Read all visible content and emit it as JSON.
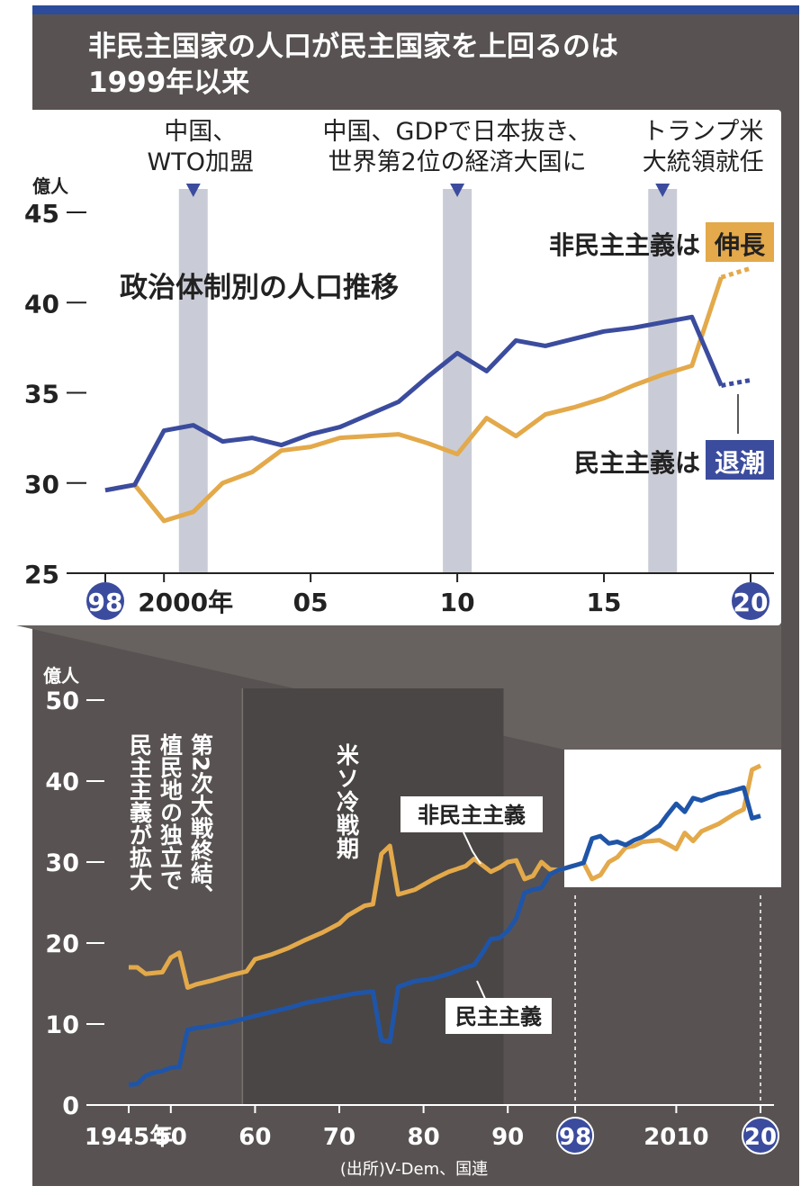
{
  "title_line1": "非民主国家の人口が民主国家を上回るのは",
  "title_line2": "1999年以来",
  "source": "(出所)V-Dem、国連",
  "colors": {
    "nondemocracy": "#e3a94a",
    "democracy": "#3b4c9e",
    "democracy_lower": "#1f55a8",
    "background": "#585352",
    "highlight_band": "#c9ccd6"
  },
  "chart_data": [
    {
      "type": "line",
      "title": "政治体制別の人口推移",
      "ylabel": "億人",
      "ylim": [
        25,
        45
      ],
      "yticks": [
        "25",
        "30",
        "35",
        "40",
        "45"
      ],
      "xlim": [
        1998,
        2020
      ],
      "xtick_labels": [
        {
          "x": 1998,
          "label": "98",
          "circled": true
        },
        {
          "x": 2000,
          "label": "2000年"
        },
        {
          "x": 2005,
          "label": "05"
        },
        {
          "x": 2010,
          "label": "10"
        },
        {
          "x": 2015,
          "label": "15"
        },
        {
          "x": 2020,
          "label": "20",
          "circled": true
        }
      ],
      "events": [
        {
          "x": 2001,
          "line1": "中国、",
          "line2": "WTO加盟"
        },
        {
          "x": 2010,
          "line1": "中国、GDPで日本抜き、",
          "line2": "世界第2位の経済大国に"
        },
        {
          "x": 2017,
          "line1": "トランプ米",
          "line2": "大統領就任"
        }
      ],
      "series": [
        {
          "name": "非民主主義",
          "label_prefix": "非民主主義は",
          "label_highlight": "伸長",
          "color": "#e3a94a",
          "x": [
            1998,
            1999,
            2000,
            2001,
            2002,
            2003,
            2004,
            2005,
            2006,
            2007,
            2008,
            2009,
            2010,
            2011,
            2012,
            2013,
            2014,
            2015,
            2016,
            2017,
            2018,
            2019
          ],
          "y": [
            29.6,
            29.9,
            27.9,
            28.4,
            30.0,
            30.6,
            31.8,
            32.0,
            32.5,
            32.6,
            32.7,
            32.2,
            31.6,
            33.6,
            32.6,
            33.8,
            34.2,
            34.7,
            35.4,
            36.0,
            36.5,
            41.4
          ],
          "projection": {
            "x": [
              2019,
              2020
            ],
            "y": [
              41.4,
              41.9
            ]
          }
        },
        {
          "name": "民主主義",
          "label_prefix": "民主主義は",
          "label_highlight": "退潮",
          "color": "#3b4c9e",
          "x": [
            1998,
            1999,
            2000,
            2001,
            2002,
            2003,
            2004,
            2005,
            2006,
            2007,
            2008,
            2009,
            2010,
            2011,
            2012,
            2013,
            2014,
            2015,
            2016,
            2017,
            2018,
            2019
          ],
          "y": [
            29.6,
            29.9,
            32.9,
            33.2,
            32.3,
            32.5,
            32.1,
            32.7,
            33.1,
            33.8,
            34.5,
            35.9,
            37.2,
            36.2,
            37.9,
            37.6,
            38.0,
            38.4,
            38.6,
            38.9,
            39.2,
            35.4
          ],
          "projection": {
            "x": [
              2019,
              2020
            ],
            "y": [
              35.4,
              35.7
            ]
          }
        }
      ]
    },
    {
      "type": "line",
      "ylabel": "億人",
      "ylim": [
        0,
        50
      ],
      "yticks": [
        "0",
        "10",
        "20",
        "30",
        "40",
        "50"
      ],
      "xlim": [
        1945,
        2020
      ],
      "xtick_labels": [
        {
          "x": 1945,
          "label": "1945年"
        },
        {
          "x": 1950,
          "label": "50"
        },
        {
          "x": 1960,
          "label": "60"
        },
        {
          "x": 1970,
          "label": "70"
        },
        {
          "x": 1980,
          "label": "80"
        },
        {
          "x": 1990,
          "label": "90"
        },
        {
          "x": 1998,
          "label": "98",
          "circled": true
        },
        {
          "x": 2010,
          "label": "2010"
        },
        {
          "x": 2020,
          "label": "20",
          "circled": true
        }
      ],
      "periods": [
        {
          "from": 1958.5,
          "to": 1989.5,
          "label": "米ソ冷戦期"
        }
      ],
      "annotation_lines": [
        "第2次大戦終結、",
        "植民地の独立で",
        "民主主義が拡大"
      ],
      "series": [
        {
          "name": "非民主主義",
          "color": "#e3a94a",
          "x": [
            1945,
            1946,
            1947,
            1948,
            1949,
            1950,
            1951,
            1952,
            1953,
            1955,
            1957,
            1959,
            1960,
            1962,
            1964,
            1966,
            1968,
            1970,
            1971,
            1973,
            1974,
            1975,
            1976,
            1977,
            1979,
            1981,
            1983,
            1985,
            1986,
            1988,
            1989,
            1990,
            1991,
            1992,
            1993,
            1994,
            1995,
            1996,
            1998,
            1999,
            2000,
            2001,
            2002,
            2003,
            2004,
            2005,
            2006,
            2008,
            2009,
            2010,
            2011,
            2012,
            2013,
            2015,
            2017,
            2018,
            2019,
            2020
          ],
          "y": [
            17,
            17,
            16.2,
            16.3,
            16.4,
            18.2,
            18.8,
            14.5,
            14.9,
            15.4,
            16.0,
            16.5,
            18.0,
            18.6,
            19.4,
            20.4,
            21.3,
            22.4,
            23.4,
            24.6,
            24.8,
            31.0,
            32.0,
            26.0,
            26.6,
            27.8,
            28.8,
            29.5,
            30.4,
            28.8,
            29.3,
            30.0,
            30.2,
            27.9,
            28.3,
            30.0,
            29.1,
            29.0,
            29.6,
            29.9,
            27.9,
            28.4,
            30.0,
            30.6,
            31.8,
            32.0,
            32.5,
            32.7,
            32.2,
            31.6,
            33.6,
            32.6,
            33.8,
            34.7,
            36.0,
            36.5,
            41.4,
            41.9
          ]
        },
        {
          "name": "民主主義",
          "color": "#1f55a8",
          "x": [
            1945,
            1946,
            1947,
            1948,
            1949,
            1950,
            1951,
            1952,
            1953,
            1955,
            1957,
            1960,
            1962,
            1964,
            1966,
            1968,
            1970,
            1972,
            1974,
            1975,
            1976,
            1977,
            1979,
            1981,
            1983,
            1985,
            1986,
            1987,
            1988,
            1989,
            1990,
            1991,
            1992,
            1993,
            1994,
            1995,
            1996,
            1998,
            1999,
            2000,
            2001,
            2002,
            2003,
            2004,
            2005,
            2006,
            2007,
            2008,
            2009,
            2010,
            2011,
            2012,
            2013,
            2014,
            2015,
            2016,
            2017,
            2018,
            2019,
            2020
          ],
          "y": [
            2.5,
            2.6,
            3.6,
            4.0,
            4.2,
            4.6,
            4.7,
            9.3,
            9.5,
            9.8,
            10.2,
            11.0,
            11.5,
            12.0,
            12.6,
            13.0,
            13.4,
            13.8,
            14.0,
            8.0,
            7.8,
            14.6,
            15.3,
            15.6,
            16.2,
            17.0,
            17.3,
            18.8,
            20.5,
            20.6,
            21.5,
            23.0,
            26.2,
            26.6,
            26.8,
            28.5,
            29.0,
            29.6,
            29.9,
            32.9,
            33.2,
            32.3,
            32.5,
            32.1,
            32.7,
            33.1,
            33.8,
            34.5,
            35.9,
            37.2,
            36.2,
            37.9,
            37.6,
            38.0,
            38.4,
            38.6,
            38.9,
            39.2,
            35.4,
            35.7
          ]
        }
      ]
    }
  ]
}
